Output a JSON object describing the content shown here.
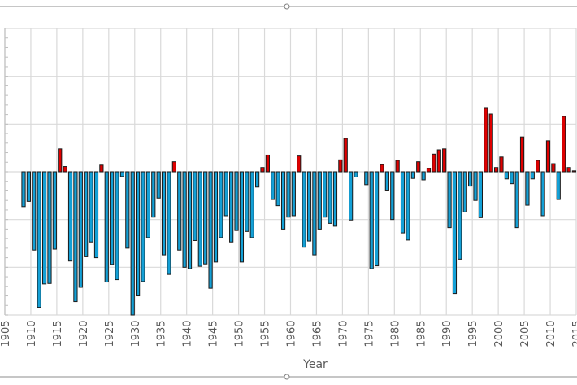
{
  "chart_data": {
    "type": "bar",
    "title": "",
    "xlabel": "Year",
    "ylabel": "",
    "xlim": [
      1905,
      2015
    ],
    "ylim": [
      -3,
      3
    ],
    "grid": true,
    "legend": "none",
    "x_ticks": [
      "1905",
      "1910",
      "1915",
      "1920",
      "1925",
      "1930",
      "1935",
      "1940",
      "1945",
      "1950",
      "1955",
      "1960",
      "1965",
      "1970",
      "1975",
      "1980",
      "1985",
      "1990",
      "1995",
      "2000",
      "2005",
      "2010",
      "2015"
    ],
    "colors": {
      "positive": "#e00000",
      "negative": "#14a0d6",
      "grid": "#d9d9d9",
      "bar_edge": "#1a1a1a"
    },
    "x": [
      1908,
      1909,
      1910,
      1911,
      1912,
      1913,
      1914,
      1915,
      1916,
      1917,
      1918,
      1919,
      1920,
      1921,
      1922,
      1923,
      1924,
      1925,
      1926,
      1927,
      1928,
      1929,
      1930,
      1931,
      1932,
      1933,
      1934,
      1935,
      1936,
      1937,
      1938,
      1939,
      1940,
      1941,
      1942,
      1943,
      1944,
      1945,
      1946,
      1947,
      1948,
      1949,
      1950,
      1951,
      1952,
      1953,
      1954,
      1955,
      1956,
      1957,
      1958,
      1959,
      1960,
      1961,
      1962,
      1963,
      1964,
      1965,
      1966,
      1967,
      1968,
      1969,
      1970,
      1971,
      1972,
      1973,
      1974,
      1975,
      1976,
      1977,
      1978,
      1979,
      1980,
      1981,
      1982,
      1983,
      1984,
      1985,
      1986,
      1987,
      1988,
      1989,
      1990,
      1991,
      1992,
      1993,
      1994,
      1995,
      1996,
      1997,
      1998,
      1999,
      2000,
      2001,
      2002,
      2003,
      2004,
      2005,
      2006,
      2007,
      2008,
      2009,
      2010,
      2011,
      2012,
      2013,
      2014
    ],
    "values": [
      -0.73,
      -0.62,
      -1.64,
      -2.84,
      -2.35,
      -2.34,
      -1.62,
      0.48,
      0.11,
      -1.87,
      -2.72,
      -2.42,
      -1.78,
      -1.47,
      -1.8,
      0.14,
      -2.31,
      -1.94,
      -2.26,
      -0.1,
      -1.6,
      -3.0,
      -2.6,
      -2.3,
      -1.38,
      -0.95,
      -0.55,
      -1.74,
      -2.15,
      0.21,
      -1.64,
      -2.0,
      -2.03,
      -1.44,
      -1.98,
      -1.93,
      -2.44,
      -1.89,
      -1.38,
      -0.92,
      -1.47,
      -1.23,
      -1.89,
      -1.25,
      -1.38,
      -0.32,
      0.09,
      0.35,
      -0.58,
      -0.71,
      -1.2,
      -0.95,
      -0.92,
      0.33,
      -1.58,
      -1.45,
      -1.74,
      -1.2,
      -0.95,
      -1.08,
      -1.14,
      0.25,
      0.7,
      -1.01,
      -0.11,
      0,
      -0.27,
      -2.03,
      -1.97,
      0.15,
      -0.4,
      -1.0,
      0.24,
      -1.28,
      -1.43,
      -0.14,
      0.21,
      -0.17,
      0.07,
      0.37,
      0.46,
      0.48,
      -1.17,
      -2.55,
      -1.83,
      -0.84,
      -0.3,
      -0.6,
      -0.96,
      1.33,
      1.21,
      0.09,
      0.31,
      -0.15,
      -0.25,
      -1.17,
      0.73,
      -0.7,
      -0.15,
      0.24,
      -0.92,
      0.65,
      0.17,
      -0.58,
      1.16,
      0.09,
      0.02
    ]
  }
}
